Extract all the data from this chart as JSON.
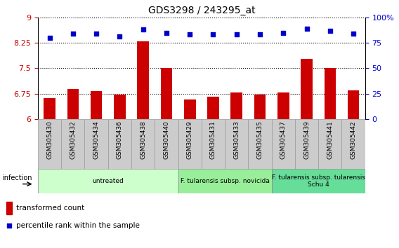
{
  "title": "GDS3298 / 243295_at",
  "categories": [
    "GSM305430",
    "GSM305432",
    "GSM305434",
    "GSM305436",
    "GSM305438",
    "GSM305440",
    "GSM305429",
    "GSM305431",
    "GSM305433",
    "GSM305435",
    "GSM305437",
    "GSM305439",
    "GSM305441",
    "GSM305442"
  ],
  "bar_values": [
    6.62,
    6.88,
    6.82,
    6.72,
    8.3,
    7.5,
    6.58,
    6.65,
    6.78,
    6.72,
    6.78,
    7.78,
    7.5,
    6.85
  ],
  "scatter_values": [
    80,
    84,
    84,
    81,
    88,
    85,
    83,
    83,
    83,
    83,
    85,
    89,
    87,
    84
  ],
  "bar_color": "#cc0000",
  "scatter_color": "#0000cc",
  "ylim_left": [
    6,
    9
  ],
  "ylim_right": [
    0,
    100
  ],
  "yticks_left": [
    6,
    6.75,
    7.5,
    8.25,
    9
  ],
  "ytick_labels_left": [
    "6",
    "6.75",
    "7.5",
    "8.25",
    "9"
  ],
  "yticks_right": [
    0,
    25,
    50,
    75,
    100
  ],
  "ytick_labels_right": [
    "0",
    "25",
    "50",
    "75",
    "100%"
  ],
  "groups": [
    {
      "label": "untreated",
      "start": 0,
      "end": 6,
      "color": "#ccffcc"
    },
    {
      "label": "F. tularensis subsp. novicida",
      "start": 6,
      "end": 10,
      "color": "#99ee99"
    },
    {
      "label": "F. tularensis subsp. tularensis\nSchu 4",
      "start": 10,
      "end": 14,
      "color": "#66dd99"
    }
  ],
  "infection_label": "infection",
  "legend_bar_label": "transformed count",
  "legend_scatter_label": "percentile rank within the sample",
  "bar_baseline": 6,
  "xtick_gray": "#cccccc",
  "xtick_border": "#999999"
}
